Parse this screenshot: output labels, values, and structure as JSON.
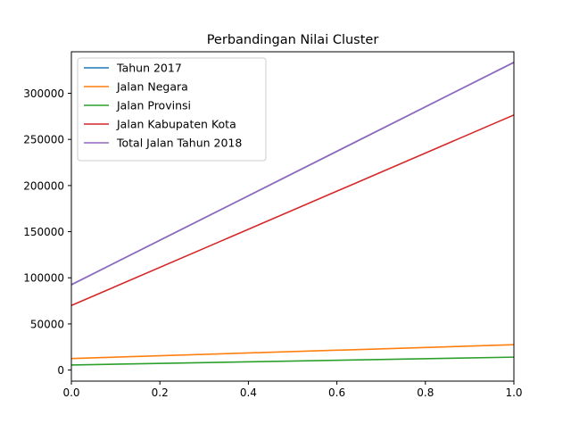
{
  "chart_data": {
    "type": "line",
    "title": "Perbandingan Nilai Cluster",
    "xlabel": "",
    "ylabel": "",
    "x": [
      0.0,
      1.0
    ],
    "xlim": [
      0.0,
      1.0
    ],
    "ylim": [
      -12000,
      345000
    ],
    "xticks": [
      0.0,
      0.2,
      0.4,
      0.6,
      0.8,
      1.0
    ],
    "xtick_labels": [
      "0.0",
      "0.2",
      "0.4",
      "0.6",
      "0.8",
      "1.0"
    ],
    "yticks": [
      0,
      50000,
      100000,
      150000,
      200000,
      250000,
      300000
    ],
    "ytick_labels": [
      "0",
      "50000",
      "100000",
      "150000",
      "200000",
      "250000",
      "300000"
    ],
    "grid": false,
    "legend_position": "top-left",
    "series": [
      {
        "name": "Tahun 2017",
        "color": "#1f77b4",
        "values": [
          92500,
          333500
        ]
      },
      {
        "name": "Jalan Negara",
        "color": "#ff7f0e",
        "values": [
          12500,
          27500
        ]
      },
      {
        "name": "Jalan Provinsi",
        "color": "#2ca02c",
        "values": [
          5500,
          14000
        ]
      },
      {
        "name": "Jalan Kabupaten Kota",
        "color": "#d62728",
        "values": [
          70000,
          276500
        ]
      },
      {
        "name": "Total Jalan Tahun 2018",
        "color": "#9467bd",
        "values": [
          92500,
          333500
        ]
      }
    ]
  }
}
